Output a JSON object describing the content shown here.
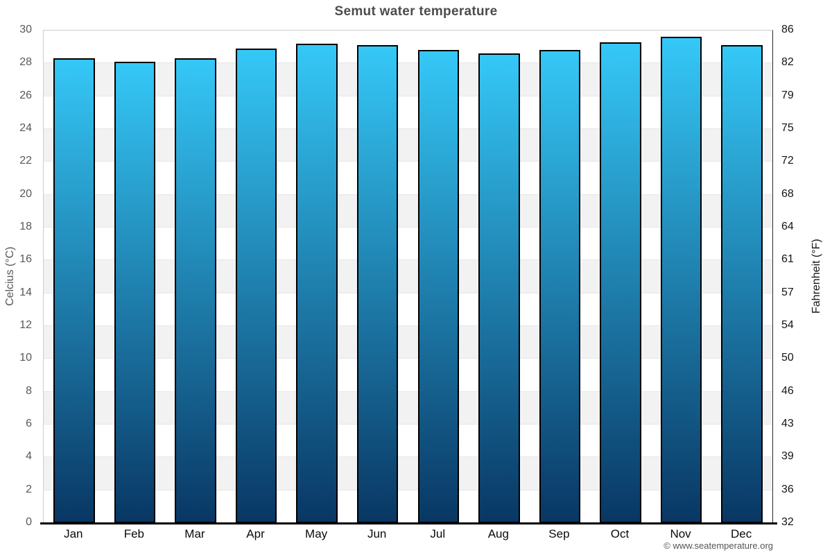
{
  "title": "Semut water temperature",
  "watermark": "© www.seatemperature.org",
  "chart_data": {
    "type": "bar",
    "title": "Semut water temperature",
    "categories": [
      "Jan",
      "Feb",
      "Mar",
      "Apr",
      "May",
      "Jun",
      "Jul",
      "Aug",
      "Sep",
      "Oct",
      "Nov",
      "Dec"
    ],
    "values": [
      28.3,
      28.1,
      28.3,
      28.9,
      29.2,
      29.1,
      28.8,
      28.6,
      28.8,
      29.3,
      29.6,
      29.1
    ],
    "unit": "°C",
    "ylabel": "Celcius (°C)",
    "ylabel_right": "Fahrenheit (°F)",
    "xlabel": "",
    "ylim": [
      0,
      30
    ],
    "ytick_step": 2,
    "yticks_left": [
      30,
      28,
      26,
      24,
      22,
      20,
      18,
      16,
      14,
      12,
      10,
      8,
      6,
      4,
      2,
      0
    ],
    "yticks_right": [
      86,
      82,
      79,
      75,
      72,
      68,
      64,
      61,
      57,
      54,
      50,
      46,
      43,
      39,
      36,
      32
    ],
    "legend": "none",
    "grid": "alternating-horizontal-bands",
    "colors": {
      "bar_gradient_top": "#35c8f7",
      "bar_gradient_bottom": "#093764",
      "bar_border": "#000000",
      "band_gray": "#f2f2f2",
      "gridline": "#e7e7e7",
      "frame_light": "#cccccc",
      "axis_dark": "#2b2b2b",
      "baseline": "#000000",
      "title_color": "#4c4c4c",
      "left_tick_color": "#58585a",
      "right_tick_color": "#141414",
      "month_label_color": "#0a0a0a",
      "watermark_color": "#555555"
    }
  }
}
